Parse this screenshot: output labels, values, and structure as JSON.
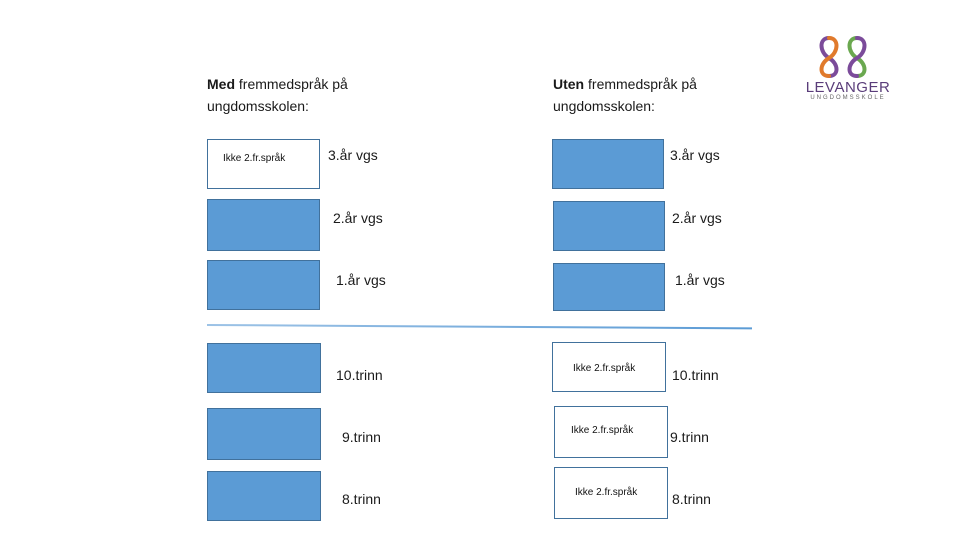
{
  "left": {
    "heading_bold": "Med",
    "heading_rest1": " fremmedspråk på",
    "heading_line2": "ungdomsskolen:"
  },
  "right": {
    "heading_bold": "Uten",
    "heading_rest1": " fremmedspråk på",
    "heading_line2": "ungdomsskolen:"
  },
  "levels": {
    "vgs3": "3.år vgs",
    "vgs2": "2.år vgs",
    "vgs1": "1.år vgs",
    "trinn10": "10.trinn",
    "trinn9": "9.trinn",
    "trinn8": "8.trinn"
  },
  "box_label": "Ikke 2.fr.språk",
  "logo": {
    "word": "LEVANGER",
    "sub": "UNGDOMSSKOLE"
  },
  "colors": {
    "filled": "#5b9bd5",
    "border": "#41719c"
  }
}
